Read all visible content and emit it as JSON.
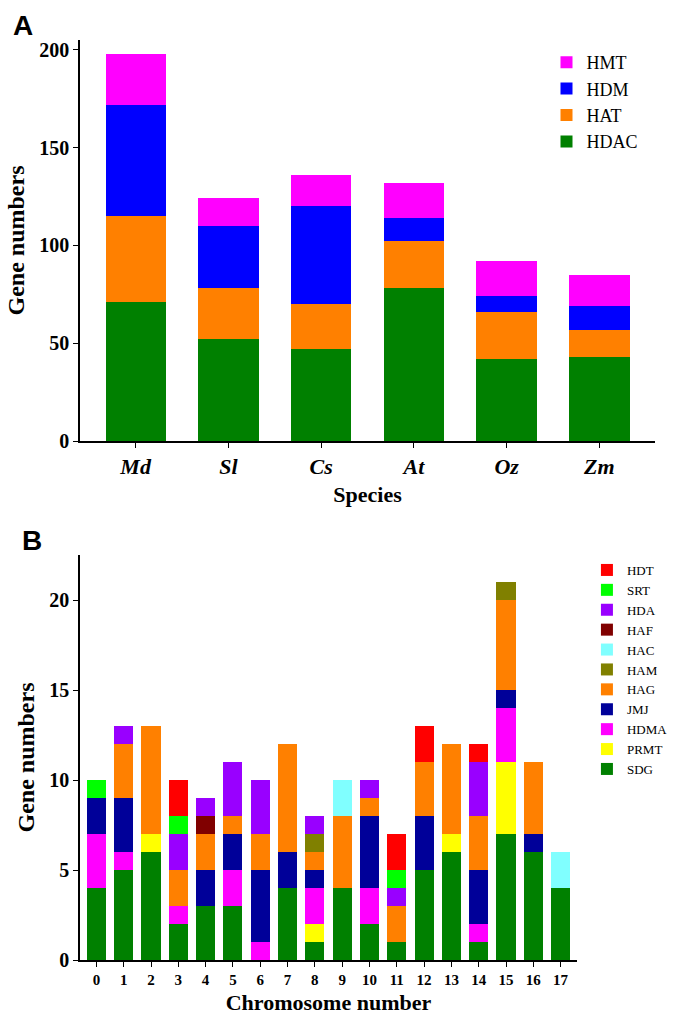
{
  "chart_data": [
    {
      "type": "bar",
      "title": "A",
      "stacked": true,
      "legend": "upper right",
      "x_label": "Species",
      "y_label": "Gene numbers",
      "categories": [
        "Md",
        "Sl",
        "Cs",
        "At",
        "Oz",
        "Zm"
      ],
      "ylim": [
        0,
        205
      ],
      "yticks": [
        0,
        50,
        100,
        150,
        200
      ],
      "series": [
        {
          "name": "HDAC",
          "color": "#008000",
          "values": [
            71,
            52,
            47,
            78,
            42,
            43
          ]
        },
        {
          "name": "HAT",
          "color": "#ff8000",
          "values": [
            44,
            26,
            23,
            24,
            24,
            14
          ]
        },
        {
          "name": "HDM",
          "color": "#0000ff",
          "values": [
            57,
            32,
            50,
            12,
            8,
            12
          ]
        },
        {
          "name": "HMT",
          "color": "#ff00ff",
          "values": [
            26,
            14,
            16,
            18,
            18,
            16
          ]
        }
      ]
    },
    {
      "type": "bar",
      "title": "B",
      "stacked": true,
      "legend": "right",
      "x_label": "Chromosome number",
      "y_label": "Gene numbers",
      "categories": [
        "0",
        "1",
        "2",
        "3",
        "4",
        "5",
        "6",
        "7",
        "8",
        "9",
        "10",
        "11",
        "12",
        "13",
        "14",
        "15",
        "16",
        "17"
      ],
      "ylim": [
        0,
        22.5
      ],
      "yticks": [
        0,
        5,
        10,
        15,
        20
      ],
      "series": [
        {
          "name": "SDG",
          "color": "#008000",
          "values": [
            4,
            5,
            6,
            2,
            3,
            3,
            0,
            4,
            1,
            4,
            2,
            1,
            5,
            6,
            1,
            7,
            6,
            4
          ]
        },
        {
          "name": "PRMT",
          "color": "#ffff00",
          "values": [
            0,
            0,
            1,
            0,
            0,
            0,
            0,
            0,
            1,
            0,
            0,
            0,
            0,
            1,
            0,
            4,
            0,
            0
          ]
        },
        {
          "name": "HDMA",
          "color": "#ff00ff",
          "values": [
            3,
            1,
            0,
            1,
            0,
            2,
            1,
            0,
            2,
            0,
            2,
            0,
            0,
            0,
            1,
            3,
            0,
            0
          ]
        },
        {
          "name": "JMJ",
          "color": "#000099",
          "values": [
            2,
            3,
            0,
            0,
            2,
            2,
            4,
            2,
            1,
            0,
            4,
            0,
            3,
            0,
            3,
            1,
            1,
            0
          ]
        },
        {
          "name": "HAG",
          "color": "#ff8000",
          "values": [
            0,
            3,
            6,
            2,
            2,
            1,
            2,
            6,
            1,
            4,
            1,
            2,
            3,
            5,
            3,
            5,
            4,
            0
          ]
        },
        {
          "name": "HAM",
          "color": "#808000",
          "values": [
            0,
            0,
            0,
            0,
            0,
            0,
            0,
            0,
            1,
            0,
            0,
            0,
            0,
            0,
            0,
            1,
            0,
            0
          ]
        },
        {
          "name": "HAC",
          "color": "#80ffff",
          "values": [
            0,
            0,
            0,
            0,
            0,
            0,
            0,
            0,
            0,
            2,
            0,
            0,
            0,
            0,
            0,
            0,
            0,
            2
          ]
        },
        {
          "name": "HAF",
          "color": "#800000",
          "values": [
            0,
            0,
            0,
            0,
            1,
            0,
            0,
            0,
            0,
            0,
            0,
            0,
            0,
            0,
            0,
            0,
            0,
            0
          ]
        },
        {
          "name": "HDA",
          "color": "#9900ff",
          "values": [
            0,
            1,
            0,
            2,
            1,
            3,
            3,
            0,
            1,
            0,
            1,
            1,
            0,
            0,
            3,
            0,
            0,
            0
          ]
        },
        {
          "name": "SRT",
          "color": "#00ff00",
          "values": [
            1,
            0,
            0,
            1,
            0,
            0,
            0,
            0,
            0,
            0,
            0,
            1,
            0,
            0,
            0,
            0,
            0,
            0
          ]
        },
        {
          "name": "HDT",
          "color": "#ff0000",
          "values": [
            0,
            0,
            0,
            2,
            0,
            0,
            0,
            0,
            0,
            0,
            0,
            2,
            2,
            0,
            1,
            0,
            0,
            0
          ]
        }
      ]
    }
  ]
}
